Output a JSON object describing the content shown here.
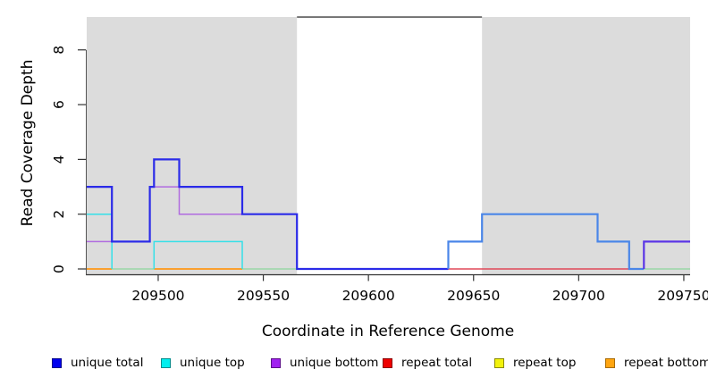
{
  "figure": {
    "xlabel": "Coordinate in Reference Genome",
    "ylabel": "Read Coverage Depth"
  },
  "chart_data": {
    "type": "line",
    "subtype": "step-coverage-plot",
    "title": "",
    "xlabel": "Coordinate in Reference Genome",
    "ylabel": "Read Coverage Depth",
    "xlim": [
      209466,
      209753
    ],
    "ylim": [
      0,
      9.2
    ],
    "x_ticks": [
      "209500",
      "209550",
      "209600",
      "209650",
      "209700",
      "209750"
    ],
    "x_tick_values": [
      209500,
      209550,
      209600,
      209650,
      209700,
      209750
    ],
    "y_ticks": [
      "0",
      "2",
      "4",
      "6",
      "8"
    ],
    "y_tick_values": [
      0,
      2,
      4,
      6,
      8
    ],
    "grid": false,
    "legend_position": "bottom",
    "background_shading": {
      "color": "#dcdcdc",
      "repeat_regions": [
        [
          209466,
          209566
        ],
        [
          209654,
          209753
        ]
      ]
    },
    "top_boundary_line": {
      "x1": 209566,
      "x2": 209654,
      "y": 9.2,
      "color": "#5a5a5a"
    },
    "series": [
      {
        "name": "unique total",
        "color": "#0000EE",
        "steps": [
          [
            209466,
            3
          ],
          [
            209478,
            1
          ],
          [
            209496,
            3
          ],
          [
            209498,
            4
          ],
          [
            209510,
            3
          ],
          [
            209540,
            2
          ],
          [
            209566,
            0
          ],
          [
            209638,
            1
          ],
          [
            209654,
            2
          ],
          [
            209709,
            1
          ],
          [
            209724,
            0
          ],
          [
            209731,
            1
          ]
        ],
        "end_x": 209753
      },
      {
        "name": "unique top",
        "color": "#00EEEE",
        "steps": [
          [
            209466,
            2
          ],
          [
            209478,
            0
          ],
          [
            209498,
            1
          ],
          [
            209540,
            0
          ],
          [
            209638,
            1
          ],
          [
            209654,
            2
          ],
          [
            209709,
            1
          ],
          [
            209724,
            0
          ]
        ],
        "end_x": 209753
      },
      {
        "name": "unique bottom",
        "color": "#A020F0",
        "steps": [
          [
            209466,
            1
          ],
          [
            209496,
            3
          ],
          [
            209510,
            2
          ],
          [
            209566,
            0
          ],
          [
            209731,
            1
          ]
        ],
        "end_x": 209753
      },
      {
        "name": "repeat total",
        "color": "#EE0000",
        "steps": [
          [
            209466,
            0
          ]
        ],
        "end_x": 209753
      },
      {
        "name": "repeat top",
        "color": "#EEEE00",
        "steps": [
          [
            209466,
            0
          ]
        ],
        "end_x": 209753
      },
      {
        "name": "repeat bottom",
        "color": "#FFA500",
        "steps": [
          [
            209466,
            0
          ]
        ],
        "end_x": 209753
      }
    ],
    "painted_paths": [
      {
        "color": "#9AD6A6",
        "width": 1.5,
        "points": [
          [
            209478,
            0
          ],
          [
            209498,
            0
          ]
        ]
      },
      {
        "color": "#9AD6A6",
        "width": 1.5,
        "points": [
          [
            209540,
            0
          ],
          [
            209566,
            0
          ]
        ]
      },
      {
        "color": "#9AD6A6",
        "width": 1.5,
        "points": [
          [
            209731,
            0
          ],
          [
            209753,
            0
          ]
        ]
      },
      {
        "color": "#FF9818",
        "width": 1.8,
        "points": [
          [
            209466,
            0
          ],
          [
            209478,
            0
          ]
        ]
      },
      {
        "color": "#FF9818",
        "width": 1.8,
        "points": [
          [
            209498,
            0
          ],
          [
            209540,
            0
          ]
        ]
      },
      {
        "color": "#E04858",
        "width": 1.5,
        "points": [
          [
            209638,
            0
          ],
          [
            209724,
            0
          ]
        ]
      },
      {
        "color": "#B06BE0",
        "width": 1.5,
        "points": [
          [
            209466,
            1
          ],
          [
            209496,
            1
          ],
          [
            209496,
            3
          ],
          [
            209510,
            3
          ],
          [
            209510,
            2
          ],
          [
            209566,
            2
          ],
          [
            209566,
            0
          ]
        ]
      },
      {
        "color": "#35E0E8",
        "width": 1.5,
        "points": [
          [
            209466,
            2
          ],
          [
            209478,
            2
          ],
          [
            209478,
            0
          ]
        ]
      },
      {
        "color": "#35E0E8",
        "width": 1.5,
        "points": [
          [
            209498,
            0
          ],
          [
            209498,
            1
          ],
          [
            209540,
            1
          ],
          [
            209540,
            0
          ]
        ]
      },
      {
        "color": "#2B2BE8",
        "width": 2.2,
        "points": [
          [
            209466,
            3
          ],
          [
            209478,
            3
          ],
          [
            209478,
            1
          ],
          [
            209496,
            1
          ],
          [
            209496,
            3
          ],
          [
            209498,
            3
          ],
          [
            209498,
            4
          ],
          [
            209510,
            4
          ],
          [
            209510,
            3
          ],
          [
            209540,
            3
          ],
          [
            209540,
            2
          ],
          [
            209566,
            2
          ],
          [
            209566,
            0
          ],
          [
            209638,
            0
          ]
        ]
      },
      {
        "color": "#4A86E8",
        "width": 2.2,
        "points": [
          [
            209638,
            0
          ],
          [
            209638,
            1
          ],
          [
            209654,
            1
          ],
          [
            209654,
            2
          ],
          [
            209709,
            2
          ],
          [
            209709,
            1
          ],
          [
            209724,
            1
          ],
          [
            209724,
            0
          ],
          [
            209731,
            0
          ]
        ]
      },
      {
        "color": "#5B35E6",
        "width": 2.2,
        "points": [
          [
            209731,
            0
          ],
          [
            209731,
            1
          ],
          [
            209753,
            1
          ]
        ]
      }
    ]
  },
  "legend": {
    "items": [
      {
        "label": "unique total",
        "fill": "#0000EE",
        "border": "#00008B"
      },
      {
        "label": "unique top",
        "fill": "#00EEEE",
        "border": "#008B8B"
      },
      {
        "label": "unique bottom",
        "fill": "#A020F0",
        "border": "#5D0E8B"
      },
      {
        "label": "repeat total",
        "fill": "#EE0000",
        "border": "#8B0000"
      },
      {
        "label": "repeat top",
        "fill": "#F2F20C",
        "border": "#8B8B00"
      },
      {
        "label": "repeat bottom",
        "fill": "#FFA510",
        "border": "#A86A00"
      }
    ]
  }
}
